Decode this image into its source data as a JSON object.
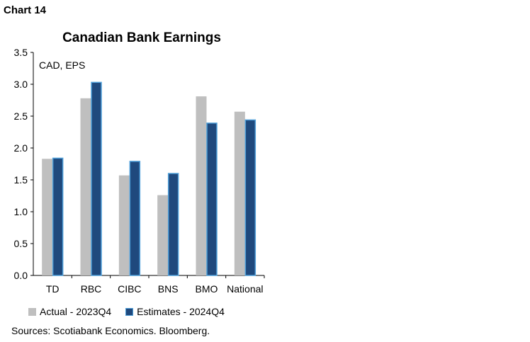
{
  "header": {
    "chart_number": "Chart 14"
  },
  "colors": {
    "actual": "#bfbfbf",
    "estimates": "#1f497d",
    "estimates_edge": "#4f9fd9",
    "axis": "#000000"
  },
  "chart_data": {
    "type": "bar",
    "title": "Canadian Bank Earnings",
    "unit_label": "CAD, EPS",
    "categories": [
      "TD",
      "RBC",
      "CIBC",
      "BNS",
      "BMO",
      "National"
    ],
    "series": [
      {
        "name": "Actual - 2023Q4",
        "values": [
          1.83,
          2.78,
          1.57,
          1.26,
          2.81,
          2.57
        ]
      },
      {
        "name": "Estimates - 2024Q4",
        "values": [
          1.84,
          3.03,
          1.79,
          1.6,
          2.39,
          2.44
        ]
      }
    ],
    "ylim": [
      0,
      3.5
    ],
    "yticks": [
      "0.0",
      "0.5",
      "1.0",
      "1.5",
      "2.0",
      "2.5",
      "3.0",
      "3.5"
    ],
    "grid": false,
    "legend_position": "bottom"
  },
  "footer": {
    "source": "Sources: Scotiabank Economics. Bloomberg."
  }
}
